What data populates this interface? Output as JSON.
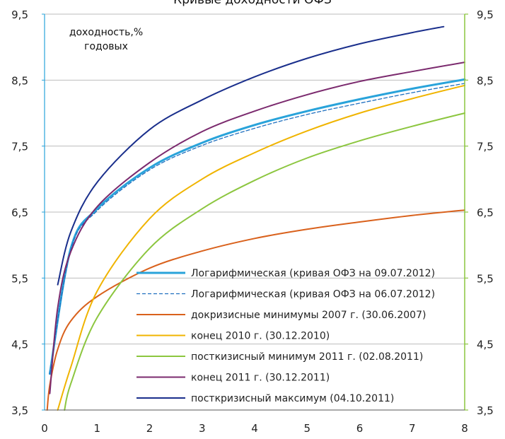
{
  "chart_data": {
    "type": "line",
    "title": "Кривые доходности ОФЗ",
    "ylabel_lines": [
      "доходность,%",
      "годовых"
    ],
    "xlim": [
      0,
      8
    ],
    "ylim": [
      3.5,
      9.5
    ],
    "x_ticks": [
      "0",
      "1",
      "2",
      "3",
      "4",
      "5",
      "6",
      "7",
      "8"
    ],
    "y_ticks": [
      "3,5",
      "4,5",
      "5,5",
      "6,5",
      "7,5",
      "8,5",
      "9,5"
    ],
    "y_tick_values": [
      3.5,
      4.5,
      5.5,
      6.5,
      7.5,
      8.5,
      9.5
    ],
    "grid": "horizontal",
    "legend_position": "bottom-right",
    "series": [
      {
        "name": "Логарифмическая (кривая ОФЗ на 09.07.2012)",
        "color": "#29a3da",
        "dashed": false,
        "width": 3,
        "x": [
          0.1,
          0.5,
          1,
          2,
          3,
          4,
          5,
          6,
          7,
          8
        ],
        "y": [
          4.05,
          5.95,
          6.55,
          7.17,
          7.55,
          7.82,
          8.03,
          8.21,
          8.37,
          8.51
        ]
      },
      {
        "name": "Логарифмическая (кривая ОФЗ на 06.07.2012)",
        "color": "#1f6fbf",
        "dashed": true,
        "width": 1.3,
        "x": [
          0.1,
          0.5,
          1,
          2,
          3,
          4,
          5,
          6,
          7,
          8
        ],
        "y": [
          4.05,
          5.93,
          6.52,
          7.14,
          7.51,
          7.77,
          7.98,
          8.15,
          8.31,
          8.45
        ]
      },
      {
        "name": "докризисные минимумы 2007 г. (30.06.2007)",
        "color": "#d9611c",
        "dashed": false,
        "width": 2,
        "x": [
          0.05,
          0.1,
          0.25,
          0.5,
          1,
          2,
          3,
          4,
          5,
          6,
          7,
          8
        ],
        "y": [
          3.5,
          3.88,
          4.42,
          4.85,
          5.22,
          5.65,
          5.91,
          6.1,
          6.24,
          6.35,
          6.45,
          6.53
        ]
      },
      {
        "name": "конец 2010 г. (30.12.2010)",
        "color": "#f0b400",
        "dashed": false,
        "width": 2,
        "x": [
          0.25,
          0.5,
          1,
          2,
          3,
          4,
          5,
          6,
          7,
          8
        ],
        "y": [
          3.5,
          4.15,
          5.3,
          6.4,
          7.0,
          7.4,
          7.73,
          8.0,
          8.22,
          8.42
        ]
      },
      {
        "name": "посткизисный минимум 2011 г. (02.08.2011)",
        "color": "#8cc63f",
        "dashed": false,
        "width": 2,
        "x": [
          0.38,
          0.5,
          1,
          2,
          3,
          4,
          5,
          6,
          7,
          8
        ],
        "y": [
          3.5,
          3.9,
          4.9,
          5.95,
          6.55,
          6.98,
          7.32,
          7.58,
          7.8,
          8.0
        ]
      },
      {
        "name": "конец 2011 г. (30.12.2011)",
        "color": "#7b2a6e",
        "dashed": false,
        "width": 2,
        "x": [
          0.1,
          0.25,
          0.5,
          1,
          2,
          3,
          4,
          5,
          6,
          7,
          8
        ],
        "y": [
          3.75,
          5.05,
          5.9,
          6.58,
          7.25,
          7.72,
          8.03,
          8.28,
          8.48,
          8.63,
          8.77
        ]
      },
      {
        "name": "посткризисный максимум (04.10.2011)",
        "color": "#1a2f8c",
        "dashed": false,
        "width": 2,
        "x": [
          0.25,
          0.5,
          1,
          2,
          3,
          4,
          5,
          6,
          7,
          7.6
        ],
        "y": [
          5.4,
          6.2,
          6.95,
          7.75,
          8.2,
          8.55,
          8.83,
          9.05,
          9.22,
          9.31
        ]
      }
    ]
  }
}
